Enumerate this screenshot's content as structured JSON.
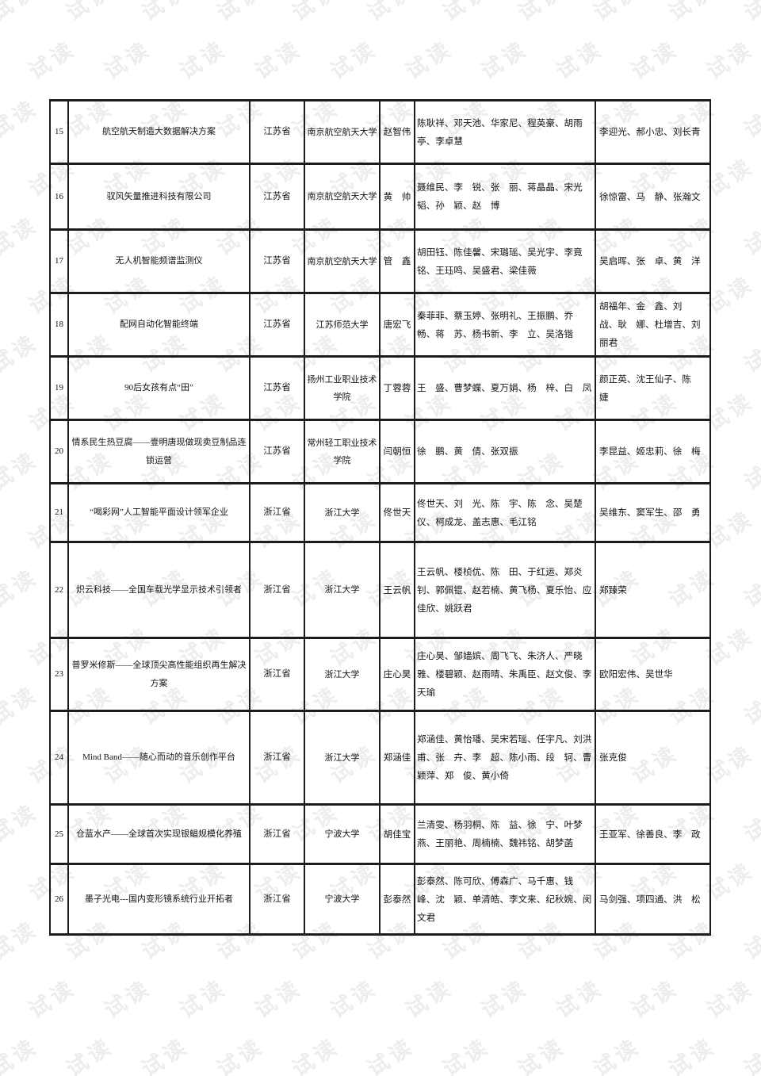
{
  "watermark": {
    "text": "试读",
    "color": "#ededed"
  },
  "colors": {
    "border": "#1c1c1c",
    "text": "#141414"
  },
  "table": {
    "rows": [
      {
        "no": "15",
        "project": "航空航天制造大数据解决方案",
        "province": "江苏省",
        "school": "南京航空航天大学",
        "leader": "赵智伟",
        "members": "陈耿祥、邓天池、华家尼、程英豪、胡雨亭、李卓慧",
        "advisors": "李迎光、郝小忠、刘长青"
      },
      {
        "no": "16",
        "project": "驭风矢量推进科技有限公司",
        "province": "江苏省",
        "school": "南京航空航天大学",
        "leader": "黄　帅",
        "members": "聂维民、李　锐、张　丽、蒋晶晶、宋光韬、孙　颖、赵　博",
        "advisors": "徐惊雷、马　静、张瀚文"
      },
      {
        "no": "17",
        "project": "无人机智能频谱监测仪",
        "province": "江苏省",
        "school": "南京航空航天大学",
        "leader": "管　鑫",
        "members": "胡田钰、陈佳馨、宋璐瑶、吴光宇、李竟铭、王珏鸣、吴盛君、梁佳薇",
        "advisors": "吴启晖、张　卓、黄　洋"
      },
      {
        "no": "18",
        "project": "配网自动化智能终端",
        "province": "江苏省",
        "school": "江苏师范大学",
        "leader": "唐宏飞",
        "members": "秦菲菲、蔡玉婷、张明礼、王振鹏、乔　畅、蒋　苏、杨书新、李　立、吴洛锴",
        "advisors": "胡福年、金　鑫、刘　战、耿　娜、杜增吉、刘丽君"
      },
      {
        "no": "19",
        "project": "90后女孩有点“田”",
        "province": "江苏省",
        "school": "扬州工业职业技术学院",
        "leader": "丁蓉蓉",
        "members": "王　盛、曹梦蝶、夏万娟、杨　梓、白　凤",
        "advisors": "颜正英、沈王仙子、陈　婕"
      },
      {
        "no": "20",
        "project": "情系民生热豆腐——壹明唐现做现卖豆制品连锁运营",
        "province": "江苏省",
        "school": "常州轻工职业技术学院",
        "leader": "闫朝恒",
        "members": "徐　鹏、黄　倩、张双振",
        "advisors": "李昆益、姬忠莉、徐　梅"
      },
      {
        "no": "21",
        "project": "“喝彩网”人工智能平面设计领军企业",
        "province": "浙江省",
        "school": "浙江大学",
        "leader": "佟世天",
        "members": "佟世天、刘　光、陈　宇、陈　念、吴楚仪、柯成龙、盖志惠、毛江铭",
        "advisors": "吴维东、窦军生、邵　勇"
      },
      {
        "no": "22",
        "project": "炽云科技——全国车载光学显示技术引领者",
        "province": "浙江省",
        "school": "浙江大学",
        "leader": "王云帆",
        "members": "王云帆、楼桢优、陈　田、于红运、郑炎钊、郭佩锟、赵若楠、黄飞杨、夏乐怡、应佳欣、姚跃君",
        "advisors": "郑臻荣"
      },
      {
        "no": "23",
        "project": "普罗米修斯——全球顶尖高性能组织再生解决方案",
        "province": "浙江省",
        "school": "浙江大学",
        "leader": "庄心昊",
        "members": "庄心昊、邹嫱嫔、周飞飞、朱济人、严晓雅、楼碧颖、赵雨晴、朱禹臣、赵文俊、李天瑜",
        "advisors": "欧阳宏伟、吴世华"
      },
      {
        "no": "24",
        "project": "Mind Band——随心而动的音乐创作平台",
        "province": "浙江省",
        "school": "浙江大学",
        "leader": "郑涵佳",
        "members": "郑涵佳、黄怡璠、吴宋若瑶、任宇凡、刘洪甫、张　卉、李　超、陈小雨、段　轲、曹颖萍、郑　俊、黄小倚",
        "advisors": "张克俊"
      },
      {
        "no": "25",
        "project": "仓蓝水产——全球首次实现银鲳规模化养殖",
        "province": "浙江省",
        "school": "宁波大学",
        "leader": "胡佳宝",
        "members": "兰清雯、杨羽桐、陈　益、徐　宁、叶梦燕、王丽艳、周楠楠、魏祎铭、胡梦菡",
        "advisors": "王亚军、徐善良、李　政"
      },
      {
        "no": "26",
        "project": "墨子光电---国内变形镜系统行业开拓者",
        "province": "浙江省",
        "school": "宁波大学",
        "leader": "彭泰然",
        "members": "彭泰然、陈可欣、傅森广、马千惠、钱　峰、沈　颖、单清皓、李文来、纪秋婉、闵文君",
        "advisors": "马剑强、项四通、洪　松"
      }
    ]
  }
}
